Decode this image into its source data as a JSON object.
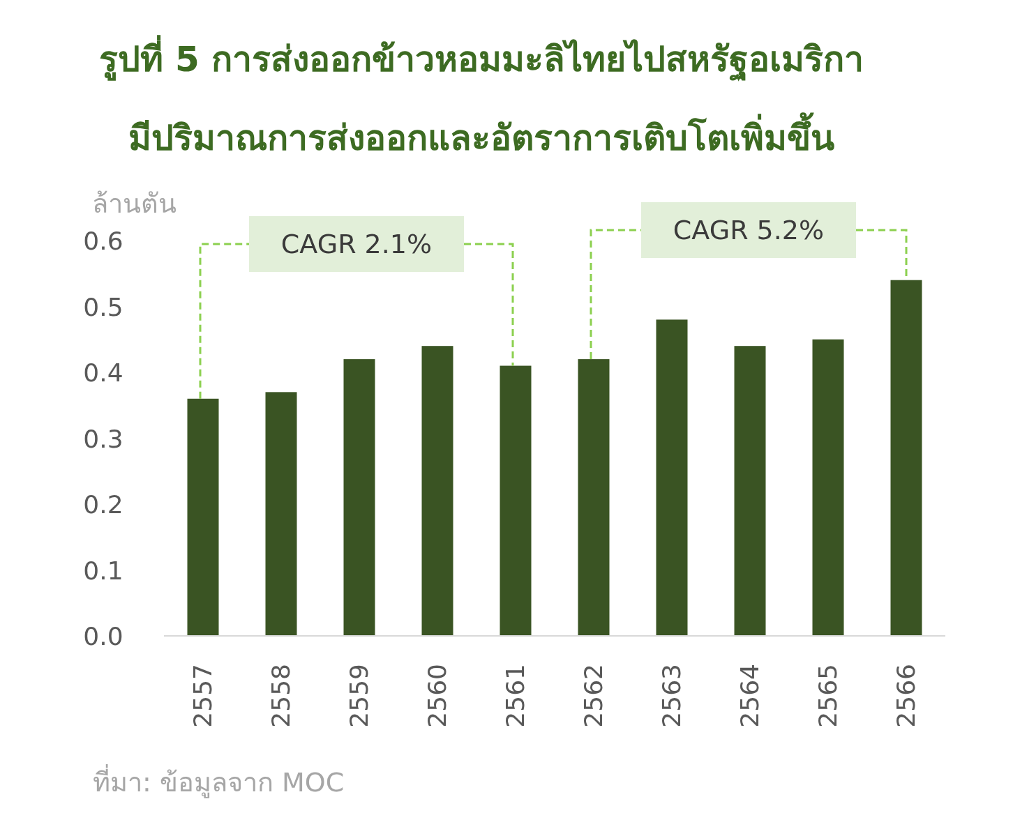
{
  "chart_data": {
    "type": "bar",
    "title": "รูปที่ 5 การส่งออกข้าวหอมมะลิไทยไปสหรัฐอเมริกา",
    "subtitle": "มีปริมาณการส่งออกและอัตราการเติบโตเพิ่มขึ้น",
    "ylabel": "ล้านตัน",
    "categories": [
      "2557",
      "2558",
      "2559",
      "2560",
      "2561",
      "2562",
      "2563",
      "2564",
      "2565",
      "2566"
    ],
    "values": [
      0.36,
      0.37,
      0.42,
      0.44,
      0.41,
      0.42,
      0.48,
      0.44,
      0.45,
      0.54
    ],
    "color": "#3a5423",
    "ylim": [
      0,
      0.6
    ],
    "yticks": [
      {
        "value": 0,
        "label": "0.0"
      },
      {
        "value": 0.1,
        "label": "0.1"
      },
      {
        "value": 0.2,
        "label": "0.2"
      },
      {
        "value": 0.3,
        "label": "0.3"
      },
      {
        "value": 0.4,
        "label": "0.4"
      },
      {
        "value": 0.5,
        "label": "0.5"
      },
      {
        "value": 0.6,
        "label": "0.6"
      }
    ],
    "annotations": [
      {
        "text": "CAGR 2.1%",
        "x": "2557",
        "y": 0.36
      },
      {
        "text": "CAGR 5.2%",
        "x": "2562",
        "y": 0.42
      },
      "ที่มา: ข้อมูลจาก MOC"
    ]
  }
}
